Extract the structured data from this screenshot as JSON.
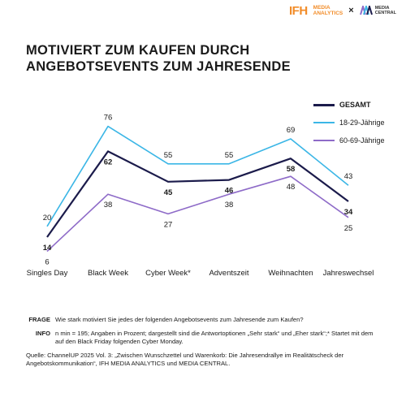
{
  "header": {
    "brand_ifh": "IFH",
    "brand_ifh_sub_1": "MEDIA",
    "brand_ifh_sub_2": "ANALYTICS",
    "cross": "×",
    "brand_mc_sub_1": "MEDIA",
    "brand_mc_sub_2": "CENTRAL"
  },
  "title_line_1": "MOTIVIERT ZUM KAUFEN DURCH",
  "title_line_2": "ANGEBOTSEVENTS ZUM JAHRESENDE",
  "chart_data": {
    "type": "line",
    "categories": [
      "Singles Day",
      "Black Week",
      "Cyber Week*",
      "Adventszeit",
      "Weihnachten",
      "Jahreswechsel"
    ],
    "series": [
      {
        "name": "GESAMT",
        "values": [
          14,
          62,
          45,
          46,
          58,
          34
        ],
        "color": "#1b1b4b",
        "bold": true
      },
      {
        "name": "18-29-Jährige",
        "values": [
          20,
          76,
          55,
          55,
          69,
          43
        ],
        "color": "#3bb6e6",
        "bold": false
      },
      {
        "name": "60-69-Jährige",
        "values": [
          6,
          38,
          27,
          38,
          48,
          25
        ],
        "color": "#8e6bc8",
        "bold": false
      }
    ],
    "ylim": [
      0,
      80
    ],
    "grid": false,
    "legend": "top-right"
  },
  "notes": {
    "frage_label": "FRAGE",
    "frage_text": "Wie stark motiviert Sie jedes der folgenden Angebotsevents zum Jahresende zum Kaufen?",
    "info_label": "INFO",
    "info_text": "n min = 195; Angaben in Prozent; dargestellt sind die Antwortoptionen „Sehr stark“ und „Eher stark“;* Startet mit dem auf den Black Friday folgenden Cyber Monday.",
    "source_text": "Quelle: ChannelUP 2025 Vol. 3: „Zwischen Wunschzettel und Warenkorb: Die Jahresendrallye im Realitätscheck der Angebotskommunikation“, IFH MEDIA ANALYTICS und MEDIA CENTRAL."
  }
}
